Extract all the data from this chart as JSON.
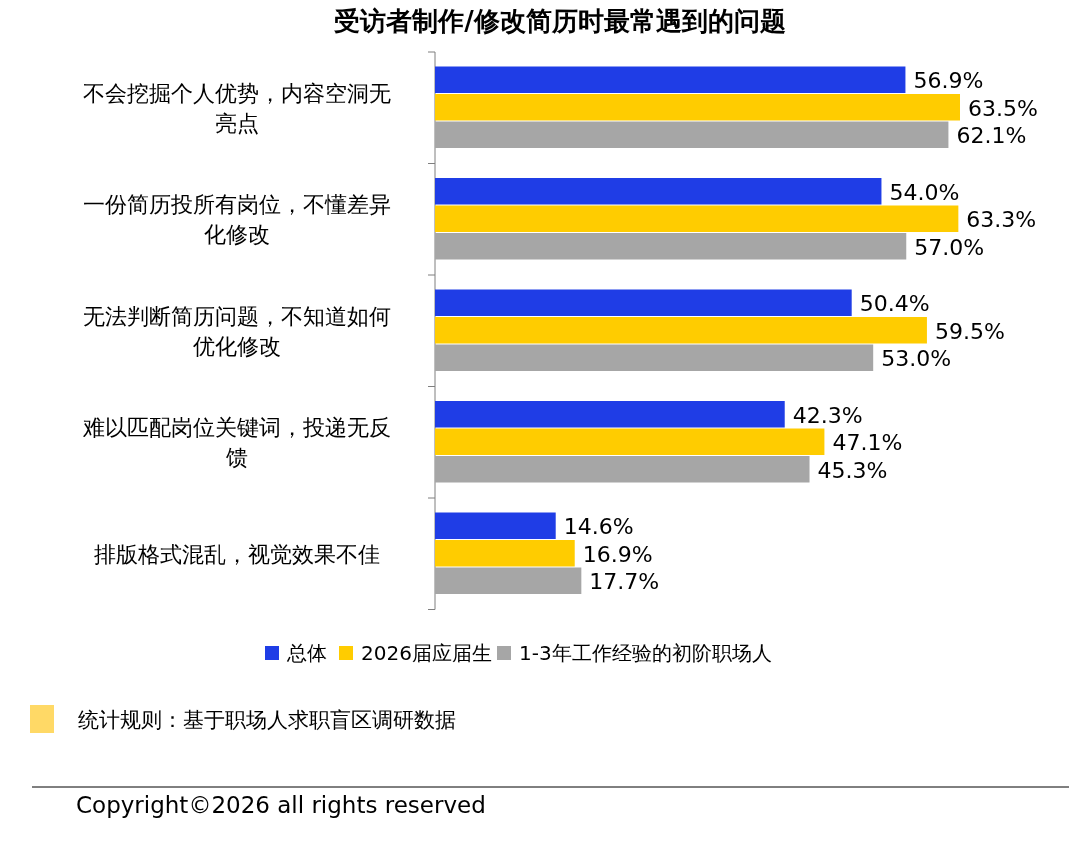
{
  "chart_data": {
    "type": "bar",
    "orientation": "horizontal",
    "title": "受访者制作/修改简历时最常遇到的问题",
    "categories": [
      "不会挖掘个人优势，内容空洞无亮点",
      "一份简历投所有岗位，不懂差异化修改",
      "无法判断简历问题，不知道如何优化修改",
      "难以匹配岗位关键词，投递无反馈",
      "排版格式混乱，视觉效果不佳"
    ],
    "series": [
      {
        "name": "总体",
        "color": "#1f3de6",
        "values": [
          56.9,
          54.0,
          50.4,
          42.3,
          14.6
        ],
        "value_labels": [
          "56.9%",
          "54.0%",
          "50.4%",
          "42.3%",
          "14.6%"
        ]
      },
      {
        "name": "2026届应届生",
        "color": "#ffcc00",
        "values": [
          63.5,
          63.3,
          59.5,
          47.1,
          16.9
        ],
        "value_labels": [
          "63.5%",
          "63.3%",
          "59.5%",
          "47.1%",
          "16.9%"
        ]
      },
      {
        "name": "1-3年工作经验的初阶职场人",
        "color": "#a6a6a6",
        "values": [
          62.1,
          57.0,
          53.0,
          45.3,
          17.7
        ],
        "value_labels": [
          "62.1%",
          "57.0%",
          "53.0%",
          "45.3%",
          "17.7%"
        ]
      }
    ],
    "legend": "bottom",
    "annotations": [
      "统计规则：基于职场人求职盲区调研数据",
      "Copyright©2026 all rights reserved"
    ]
  }
}
